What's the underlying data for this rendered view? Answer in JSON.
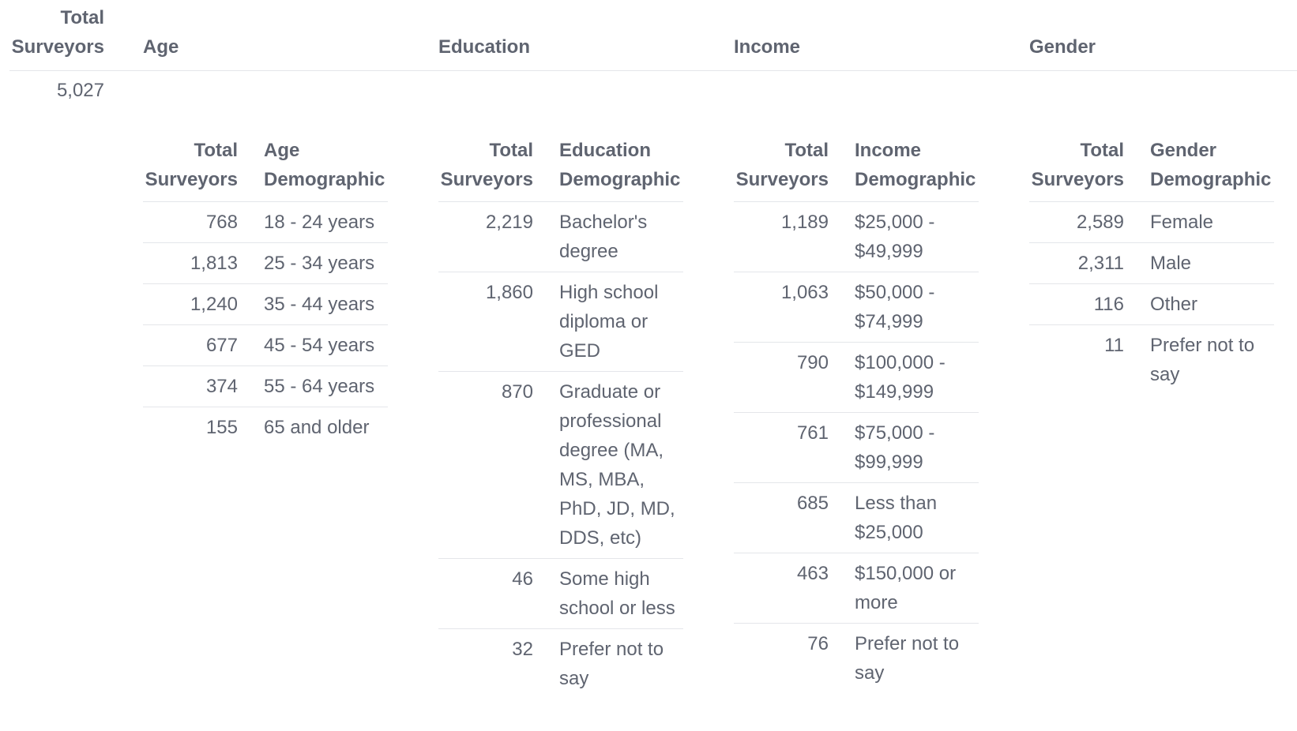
{
  "header": {
    "total_label": "Total Surveyors",
    "age_label": "Age",
    "education_label": "Education",
    "income_label": "Income",
    "gender_label": "Gender"
  },
  "grand_total": "5,027",
  "age": {
    "col_total": "Total Surveyors",
    "col_label": "Age Demographic",
    "rows": [
      {
        "count": "768",
        "label": "18 - 24 years"
      },
      {
        "count": "1,813",
        "label": "25 - 34 years"
      },
      {
        "count": "1,240",
        "label": "35 - 44 years"
      },
      {
        "count": "677",
        "label": "45 - 54 years"
      },
      {
        "count": "374",
        "label": "55 - 64 years"
      },
      {
        "count": "155",
        "label": "65 and older"
      }
    ]
  },
  "education": {
    "col_total": "Total Surveyors",
    "col_label": "Education Demographic",
    "rows": [
      {
        "count": "2,219",
        "label": "Bachelor's degree"
      },
      {
        "count": "1,860",
        "label": "High school diploma or GED"
      },
      {
        "count": "870",
        "label": "Graduate or professional degree (MA, MS, MBA, PhD, JD, MD, DDS, etc)"
      },
      {
        "count": "46",
        "label": "Some high school or less"
      },
      {
        "count": "32",
        "label": "Prefer not to say"
      }
    ]
  },
  "income": {
    "col_total": "Total Surveyors",
    "col_label": "Income Demographic",
    "rows": [
      {
        "count": "1,189",
        "label": "$25,000 - $49,999"
      },
      {
        "count": "1,063",
        "label": "$50,000 - $74,999"
      },
      {
        "count": "790",
        "label": "$100,000 - $149,999"
      },
      {
        "count": "761",
        "label": "$75,000 - $99,999"
      },
      {
        "count": "685",
        "label": "Less than $25,000"
      },
      {
        "count": "463",
        "label": "$150,000 or more"
      },
      {
        "count": "76",
        "label": "Prefer not to say"
      }
    ]
  },
  "gender": {
    "col_total": "Total Surveyors",
    "col_label": "Gender Demographic",
    "rows": [
      {
        "count": "2,589",
        "label": "Female"
      },
      {
        "count": "2,311",
        "label": "Male"
      },
      {
        "count": "116",
        "label": "Other"
      },
      {
        "count": "11",
        "label": "Prefer not to say"
      }
    ]
  }
}
